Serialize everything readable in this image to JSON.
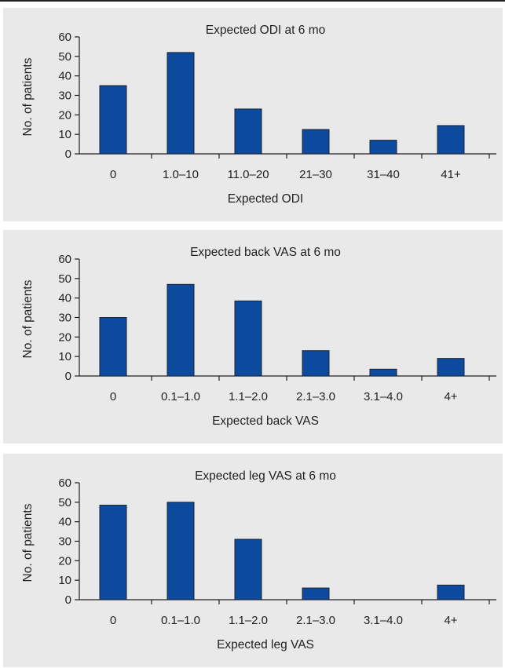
{
  "chart_data": [
    {
      "type": "bar",
      "title": "Expected ODI at 6 mo",
      "xlabel": "Expected ODI",
      "ylabel": "No. of patients",
      "ylim": [
        0,
        60
      ],
      "yticks": [
        "0",
        "10",
        "20",
        "30",
        "40",
        "50",
        "60"
      ],
      "categories": [
        "0",
        "1.0–10",
        "11.0–20",
        "21–30",
        "31–40",
        "41+"
      ],
      "values": [
        35,
        52,
        23,
        12.5,
        7,
        14.5
      ],
      "bar_color": "#0b4a9c",
      "grid": false
    },
    {
      "type": "bar",
      "title": "Expected back VAS at 6 mo",
      "xlabel": "Expected back VAS",
      "ylabel": "No. of patients",
      "ylim": [
        0,
        60
      ],
      "yticks": [
        "0",
        "10",
        "20",
        "30",
        "40",
        "50",
        "60"
      ],
      "categories": [
        "0",
        "0.1–1.0",
        "1.1–2.0",
        "2.1–3.0",
        "3.1–4.0",
        "4+"
      ],
      "values": [
        30,
        47,
        38.5,
        13,
        3.5,
        9
      ],
      "bar_color": "#0b4a9c",
      "grid": false
    },
    {
      "type": "bar",
      "title": "Expected leg VAS at 6 mo",
      "xlabel": "Expected leg VAS",
      "ylabel": "No. of patients",
      "ylim": [
        0,
        60
      ],
      "yticks": [
        "0",
        "10",
        "20",
        "30",
        "40",
        "50",
        "60"
      ],
      "categories": [
        "0",
        "0.1–1.0",
        "1.1–2.0",
        "2.1–3.0",
        "3.1–4.0",
        "4+"
      ],
      "values": [
        48.5,
        50,
        31,
        6,
        0,
        7.5
      ],
      "bar_color": "#0b4a9c",
      "grid": false
    }
  ]
}
